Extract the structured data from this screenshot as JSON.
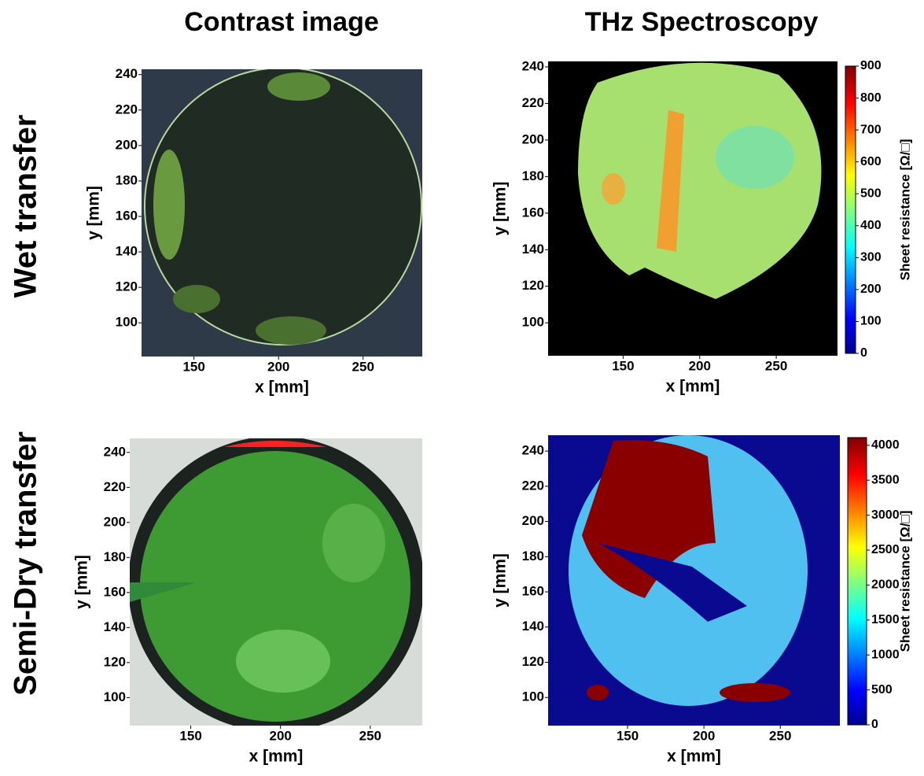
{
  "column_titles": [
    "Contrast image",
    "THz Spectroscopy"
  ],
  "row_titles": [
    "Wet transfer",
    "Semi-Dry transfer"
  ],
  "panels": [
    {
      "xlabel": "x [mm]",
      "ylabel": "y [mm]",
      "xlim": [
        119,
        285
      ],
      "ylim": [
        81,
        243
      ],
      "xticks": [
        150,
        200,
        250
      ],
      "yticks": [
        100,
        120,
        140,
        160,
        180,
        200,
        220,
        240
      ]
    },
    {
      "xlabel": "x [mm]",
      "ylabel": "y [mm]",
      "xlim": [
        101,
        290
      ],
      "ylim": [
        82,
        243
      ],
      "xticks": [
        150,
        200,
        250
      ],
      "yticks": [
        100,
        120,
        140,
        160,
        180,
        200,
        220,
        240
      ],
      "colorbar": {
        "label": "Sheet resistance [Ω/□]",
        "lim": [
          0,
          900
        ],
        "ticks": [
          0,
          100,
          200,
          300,
          400,
          500,
          600,
          700,
          800,
          900
        ]
      }
    },
    {
      "xlabel": "x [mm]",
      "ylabel": "y [mm]",
      "xlim": [
        116,
        279
      ],
      "ylim": [
        84,
        248
      ],
      "xticks": [
        150,
        200,
        250
      ],
      "yticks": [
        100,
        120,
        140,
        160,
        180,
        200,
        220,
        240
      ]
    },
    {
      "xlabel": "x [mm]",
      "ylabel": "y [mm]",
      "xlim": [
        98,
        289
      ],
      "ylim": [
        84,
        249
      ],
      "xticks": [
        150,
        200,
        250
      ],
      "yticks": [
        100,
        120,
        140,
        160,
        180,
        200,
        220,
        240
      ],
      "colorbar": {
        "label": "Sheet resistance [Ω/□]",
        "lim": [
          0,
          4110
        ],
        "ticks": [
          0,
          500,
          1000,
          1500,
          2000,
          2500,
          3000,
          3500,
          4000
        ]
      }
    }
  ]
}
